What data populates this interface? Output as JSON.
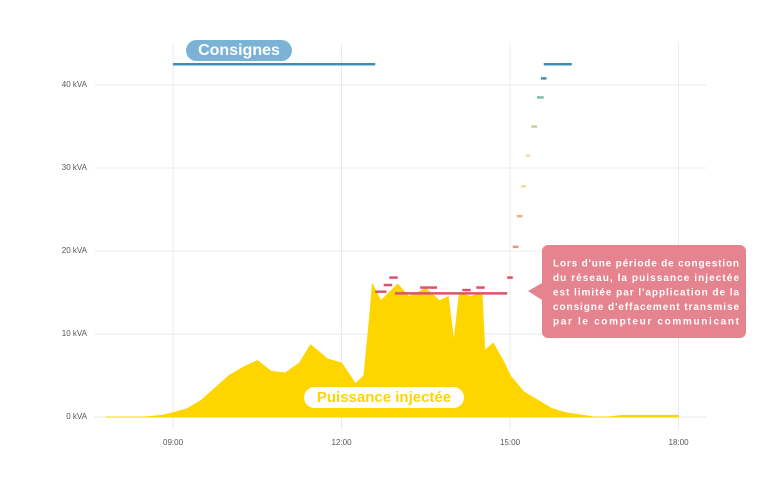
{
  "chart_data": {
    "type": "area",
    "x": [
      7.8,
      8.5,
      8.8,
      9.0,
      9.25,
      9.5,
      9.75,
      10.0,
      10.25,
      10.5,
      10.75,
      11.0,
      11.25,
      11.45,
      11.75,
      12.0,
      12.25,
      12.4,
      12.5,
      12.55,
      12.7,
      12.85,
      13.0,
      13.2,
      13.5,
      13.75,
      13.9,
      14.0,
      14.1,
      14.3,
      14.5,
      14.55,
      14.7,
      14.9,
      15.0,
      15.25,
      15.5,
      15.75,
      16.0,
      16.5,
      16.75,
      17.0,
      17.5,
      18.0
    ],
    "series": [
      {
        "name": "Puissance injectée",
        "color": "#ffd500",
        "values": [
          0,
          0,
          0.2,
          0.5,
          1,
          2,
          3.5,
          5,
          6,
          6.8,
          5.5,
          5.3,
          6.5,
          8.7,
          7,
          6.5,
          4,
          5,
          12,
          16,
          14,
          15,
          16,
          14.5,
          15.5,
          14,
          14.5,
          9,
          15,
          14.5,
          15,
          8,
          8.9,
          6.5,
          5,
          3,
          2,
          1,
          0.5,
          0,
          0,
          0.2,
          0.2,
          0.2
        ]
      }
    ],
    "consignes": {
      "name": "Consignes",
      "x_start": [
        9.0,
        12.6,
        12.75,
        12.85,
        12.95,
        13.4,
        13.55,
        14.15,
        14.4,
        14.95,
        15.05,
        15.12,
        15.2,
        15.28,
        15.38,
        15.48,
        15.55,
        15.6
      ],
      "x_end": [
        12.6,
        12.8,
        12.9,
        13.0,
        14.95,
        13.55,
        13.7,
        14.3,
        14.55,
        15.05,
        15.15,
        15.22,
        15.28,
        15.36,
        15.48,
        15.6,
        15.65,
        16.1
      ],
      "values": [
        42.5,
        15.1,
        15.9,
        16.8,
        14.9,
        15.6,
        15.6,
        15.3,
        15.6,
        16.8,
        20.5,
        24.2,
        27.8,
        31.5,
        35,
        38.5,
        40.8,
        42.5
      ],
      "colors": [
        "#3b8fb8",
        "#d9536a",
        "#d9536a",
        "#d9536a",
        "#d9536a",
        "#d9536a",
        "#d9536a",
        "#d9536a",
        "#d9536a",
        "#d9536a",
        "#f0946a",
        "#f5b07a",
        "#f5d98a",
        "#f2df9a",
        "#c9cf8f",
        "#7fbab0",
        "#3b8fb8",
        "#3b8fb8"
      ]
    },
    "xlim": [
      7.6,
      18.5
    ],
    "ylim": [
      -1.5,
      45
    ],
    "xticks": [
      {
        "value": 9,
        "label": "09:00"
      },
      {
        "value": 12,
        "label": "12:00"
      },
      {
        "value": 15,
        "label": "15:00"
      },
      {
        "value": 18,
        "label": "18:00"
      }
    ],
    "yticks": [
      {
        "value": 0,
        "label": "0 kVA"
      },
      {
        "value": 10,
        "label": "10 kVA"
      },
      {
        "value": 20,
        "label": "20 kVA"
      },
      {
        "value": 30,
        "label": "30 kVA"
      },
      {
        "value": 40,
        "label": "40 kVA"
      }
    ],
    "grid": true,
    "annotation": [
      "Lors d'une période de congestion",
      "du réseau, la puissance injectée",
      "est limitée par l'application de la",
      "consigne d'effacement transmise",
      "par le compteur communicant"
    ]
  }
}
